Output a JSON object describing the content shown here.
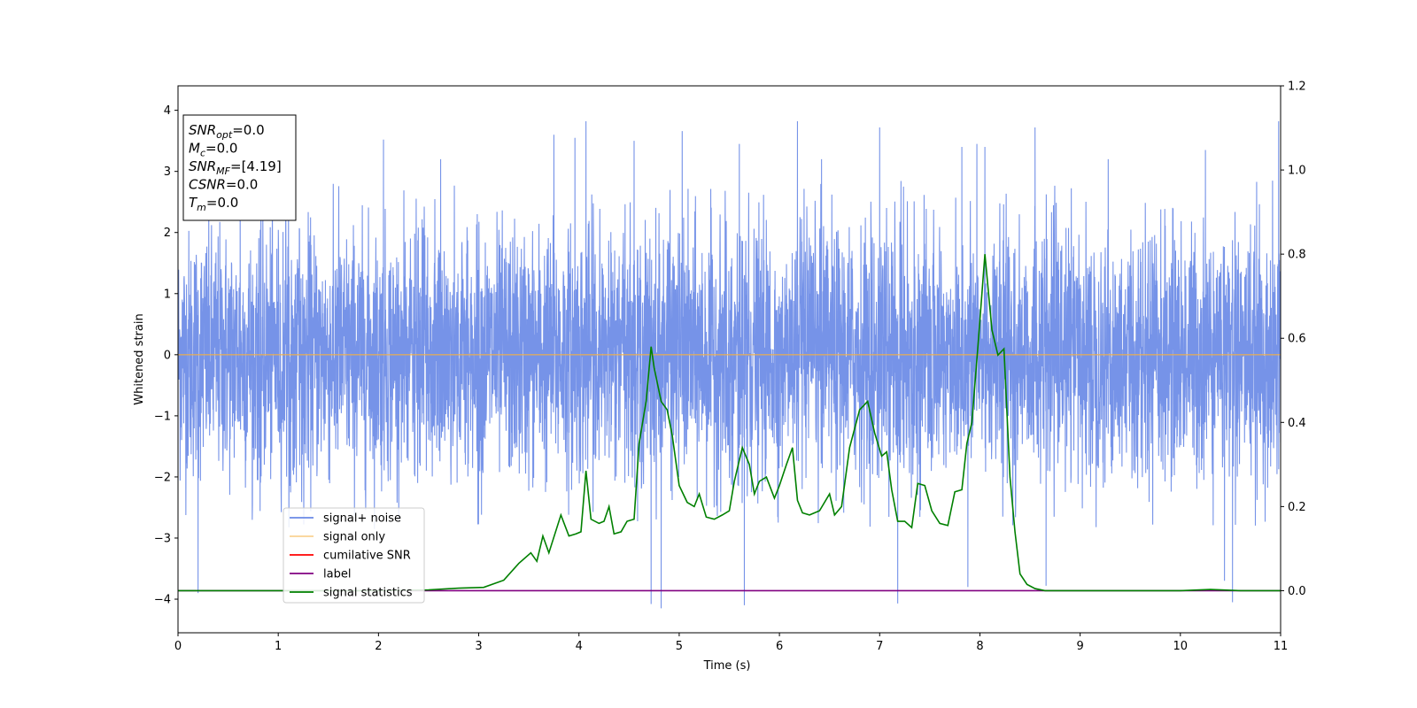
{
  "chart_data": {
    "type": "line",
    "xlabel": "Time (s)",
    "ylabel": "Whitened strain",
    "xlim": [
      0,
      11
    ],
    "ylim": [
      -4.55,
      4.4
    ],
    "y2lim": [
      -0.1,
      1.2
    ],
    "x_ticks": [
      "0",
      "1",
      "2",
      "3",
      "4",
      "5",
      "6",
      "7",
      "8",
      "9",
      "10",
      "11"
    ],
    "y_ticks": [
      "4",
      "3",
      "2",
      "1",
      "0",
      "−1",
      "−2",
      "−3",
      "−4"
    ],
    "y2_ticks": [
      "1.2",
      "1.0",
      "0.8",
      "0.6",
      "0.4",
      "0.2",
      "0.0"
    ],
    "legend_location": "lower left",
    "stats_box": [
      {
        "base": "SNR",
        "sub": "opt",
        "value": "=0.0"
      },
      {
        "base": "M",
        "sub": "c",
        "value": "=0.0"
      },
      {
        "base": "SNR",
        "sub": "MF",
        "value": "=[4.19]"
      },
      {
        "base": "CSNR",
        "sub": "",
        "value": "=0.0"
      },
      {
        "base": "T",
        "sub": "m",
        "value": "=0.0"
      }
    ],
    "series": [
      {
        "name": "signal+ noise",
        "color": "#6a8ae6",
        "axis": "left",
        "description_values": {
          "approx_std": 1.0,
          "max": 3.82,
          "min": -4.15
        },
        "peaks": [
          {
            "x": 0.2,
            "y": -3.9
          },
          {
            "x": 0.62,
            "y": 3.4
          },
          {
            "x": 2.05,
            "y": 3.52
          },
          {
            "x": 2.62,
            "y": 3.2
          },
          {
            "x": 3.75,
            "y": 3.6
          },
          {
            "x": 3.96,
            "y": 3.55
          },
          {
            "x": 4.07,
            "y": 3.82
          },
          {
            "x": 4.55,
            "y": 3.5
          },
          {
            "x": 4.72,
            "y": -4.08
          },
          {
            "x": 4.82,
            "y": -4.15
          },
          {
            "x": 5.03,
            "y": 3.66
          },
          {
            "x": 5.6,
            "y": 3.45
          },
          {
            "x": 5.65,
            "y": -4.1
          },
          {
            "x": 6.18,
            "y": 3.82
          },
          {
            "x": 6.42,
            "y": 3.2
          },
          {
            "x": 7.0,
            "y": 3.72
          },
          {
            "x": 7.18,
            "y": -4.07
          },
          {
            "x": 7.82,
            "y": 3.4
          },
          {
            "x": 7.88,
            "y": -3.8
          },
          {
            "x": 7.97,
            "y": 3.45
          },
          {
            "x": 8.05,
            "y": 3.4
          },
          {
            "x": 8.55,
            "y": 3.72
          },
          {
            "x": 8.66,
            "y": -3.78
          },
          {
            "x": 9.28,
            "y": 3.2
          },
          {
            "x": 10.25,
            "y": 3.35
          },
          {
            "x": 10.44,
            "y": -3.7
          },
          {
            "x": 10.52,
            "y": -4.05
          },
          {
            "x": 10.98,
            "y": 3.82
          }
        ]
      },
      {
        "name": "signal only",
        "color": "#f5b041",
        "axis": "left",
        "x": [
          0,
          11
        ],
        "y": [
          0,
          0
        ]
      },
      {
        "name": "cumilative SNR",
        "color": "#ff0000",
        "axis": "left",
        "x": [],
        "y": []
      },
      {
        "name": "label",
        "color": "#800080",
        "axis": "right",
        "x": [
          0,
          11
        ],
        "y": [
          0,
          0
        ]
      },
      {
        "name": "signal statistics",
        "color": "#008000",
        "axis": "right",
        "x": [
          0,
          0.5,
          1.0,
          1.5,
          2.0,
          2.5,
          2.8,
          3.05,
          3.25,
          3.4,
          3.52,
          3.58,
          3.64,
          3.7,
          3.82,
          3.9,
          3.97,
          4.02,
          4.07,
          4.12,
          4.2,
          4.25,
          4.3,
          4.35,
          4.42,
          4.48,
          4.55,
          4.6,
          4.67,
          4.72,
          4.75,
          4.82,
          4.88,
          4.93,
          5.0,
          5.08,
          5.15,
          5.2,
          5.27,
          5.35,
          5.43,
          5.5,
          5.55,
          5.63,
          5.7,
          5.75,
          5.8,
          5.87,
          5.95,
          6.0,
          6.07,
          6.13,
          6.18,
          6.23,
          6.3,
          6.4,
          6.5,
          6.55,
          6.62,
          6.7,
          6.8,
          6.88,
          6.95,
          7.02,
          7.07,
          7.12,
          7.18,
          7.25,
          7.32,
          7.38,
          7.45,
          7.52,
          7.6,
          7.68,
          7.75,
          7.82,
          7.87,
          7.92,
          7.98,
          8.05,
          8.12,
          8.18,
          8.24,
          8.3,
          8.35,
          8.4,
          8.47,
          8.55,
          8.65,
          8.8,
          9.0,
          9.5,
          10.0,
          10.3,
          10.6,
          11.0
        ],
        "y": [
          0.0,
          0.0,
          0.0,
          0.0,
          0.0,
          0.002,
          0.006,
          0.008,
          0.025,
          0.065,
          0.09,
          0.07,
          0.13,
          0.09,
          0.18,
          0.13,
          0.135,
          0.14,
          0.285,
          0.17,
          0.16,
          0.165,
          0.2,
          0.135,
          0.14,
          0.165,
          0.17,
          0.35,
          0.45,
          0.58,
          0.53,
          0.45,
          0.43,
          0.37,
          0.25,
          0.21,
          0.2,
          0.23,
          0.175,
          0.17,
          0.18,
          0.19,
          0.26,
          0.34,
          0.3,
          0.23,
          0.26,
          0.27,
          0.22,
          0.25,
          0.3,
          0.34,
          0.215,
          0.185,
          0.18,
          0.19,
          0.23,
          0.18,
          0.2,
          0.34,
          0.43,
          0.45,
          0.375,
          0.32,
          0.33,
          0.24,
          0.165,
          0.165,
          0.15,
          0.255,
          0.25,
          0.19,
          0.16,
          0.155,
          0.235,
          0.24,
          0.35,
          0.4,
          0.58,
          0.8,
          0.62,
          0.56,
          0.575,
          0.27,
          0.14,
          0.04,
          0.015,
          0.005,
          0.0,
          0.0,
          0.0,
          0.0,
          0.0,
          0.003,
          0.0,
          0.0
        ]
      }
    ]
  }
}
